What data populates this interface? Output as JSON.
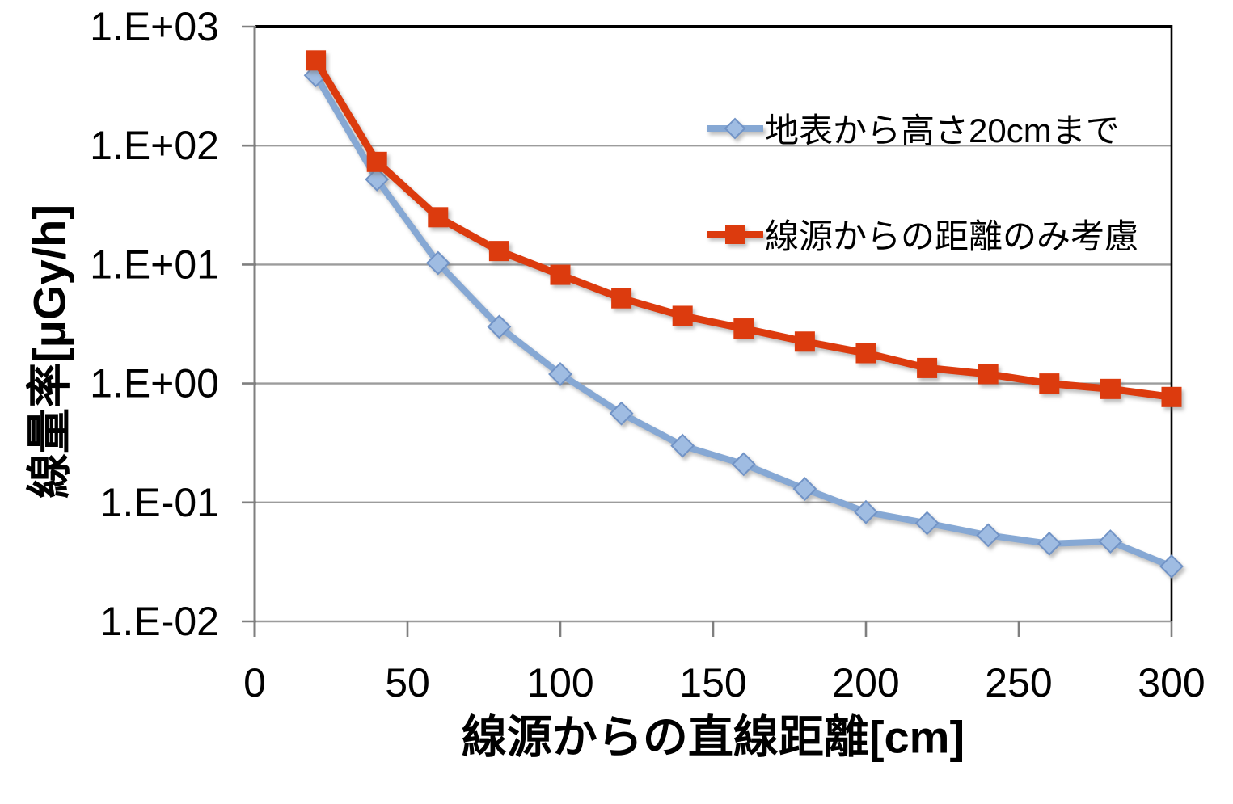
{
  "chart_data": {
    "type": "line",
    "title": "",
    "xlabel": "線源からの直線距離[cm]",
    "ylabel": "線量率[μGy/h]",
    "x": [
      20,
      40,
      60,
      80,
      100,
      120,
      140,
      160,
      180,
      200,
      220,
      240,
      260,
      280,
      300
    ],
    "series": [
      {
        "name": "地表から高さ20cmまで",
        "marker": "diamond",
        "line_color": "#86A8D4",
        "marker_fill": "#9FBCE2",
        "marker_stroke": "#7193C6",
        "values": [
          390,
          52,
          10.3,
          3.0,
          1.2,
          0.56,
          0.3,
          0.21,
          0.13,
          0.083,
          0.067,
          0.053,
          0.045,
          0.047,
          0.029
        ]
      },
      {
        "name": "線源からの距離のみ考慮",
        "marker": "square",
        "line_color": "#DC3B0E",
        "marker_fill": "#DC3B0E",
        "marker_stroke": "#C23409",
        "values": [
          520,
          73,
          25,
          13,
          8.2,
          5.2,
          3.7,
          2.9,
          2.25,
          1.8,
          1.35,
          1.2,
          1.0,
          0.9,
          0.77
        ]
      }
    ],
    "x_axis": {
      "min": 0,
      "max": 300,
      "tick_values": [
        0,
        50,
        100,
        150,
        200,
        250,
        300
      ],
      "tick_labels": [
        "0",
        "50",
        "100",
        "150",
        "200",
        "250",
        "300"
      ]
    },
    "y_axis": {
      "scale": "log",
      "min": 0.01,
      "max": 1000,
      "tick_labels": [
        "1.E+03",
        "1.E+02",
        "1.E+01",
        "1.E+00",
        "1.E-01",
        "1.E-02"
      ]
    },
    "grid": "horizontal-decades",
    "legend_position": "inside-top-right"
  },
  "style": {
    "background": "#FFFFFF",
    "grid_color": "#9C9C9C",
    "axis_color": "#7F7F7F",
    "border_color": "#000000",
    "text_color": "#000000"
  }
}
